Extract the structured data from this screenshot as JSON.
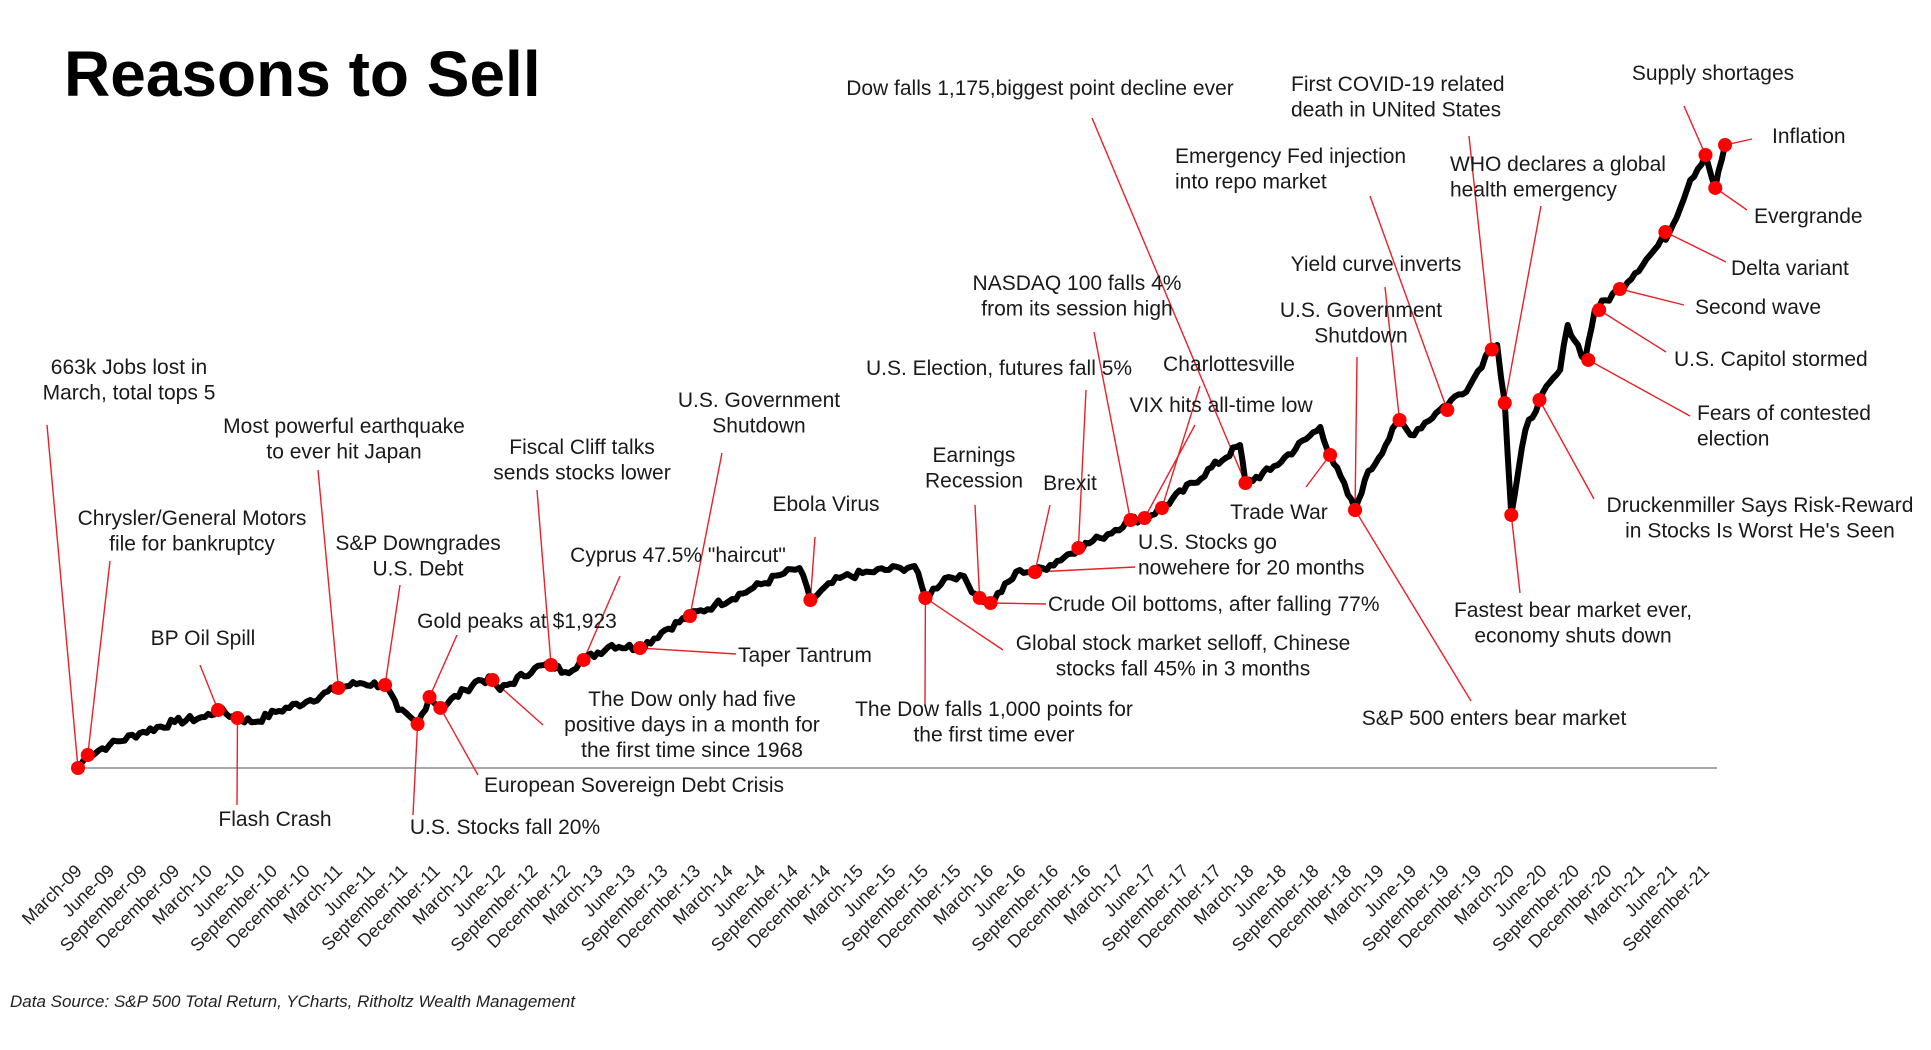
{
  "chart_data": {
    "type": "line",
    "title": "Reasons to Sell",
    "xlabel": "",
    "ylabel": "",
    "source_note": "Data Source: S&P 500 Total Return, YCharts, Ritholtz Wealth Management",
    "grid": false,
    "legend": "none",
    "series_name": "S&P 500 Total Return (index, March-09 = 100, estimated)",
    "x_unit": "months since March-09",
    "xlim": [
      0,
      152
    ],
    "ylim": [
      100,
      830
    ],
    "series": [
      {
        "name": "S&P 500 Total Return",
        "x": [
          0,
          0.9,
          2.9,
          5.7,
          8.9,
          11.7,
          12.9,
          14.7,
          16.3,
          18.2,
          21.4,
          24,
          26,
          28.3,
          29.5,
          31.3,
          32.4,
          33.4,
          35.7,
          36.9,
          38.2,
          38.9,
          42.1,
          43.6,
          44.9,
          46.6,
          49.2,
          51.8,
          54.1,
          56.4,
          58.7,
          61.9,
          64.7,
          66.5,
          67.5,
          70.2,
          73,
          75.8,
          77.1,
          78.1,
          79.9,
          81.3,
          83.1,
          84.1,
          86.8,
          88.2,
          89.6,
          92.2,
          94.2,
          97,
          98.3,
          99.9,
          107.1,
          107.6,
          109.9,
          114.5,
          115.4,
          117.7,
          118.6,
          121.8,
          122.8,
          125.5,
          128.3,
          130.1,
          130.8,
          131.5,
          132.1,
          133.4,
          134.7,
          136.6,
          137.3,
          138.9,
          139.8,
          142.1,
          144.9,
          146.7,
          148.6,
          150,
          150.9,
          151.8
        ],
        "values": [
          100,
          115.2,
          126.9,
          141,
          153.9,
          159.7,
          167.9,
          158.5,
          153.9,
          165.6,
          179.6,
          193.7,
          199.5,
          197.2,
          167.9,
          151.5,
          183.1,
          170.3,
          191.3,
          203,
          203,
          191.3,
          217.1,
          220.6,
          212.4,
          226.5,
          244,
          240.5,
          261.6,
          278,
          290.9,
          308.4,
          326,
          334.2,
          296.7,
          322.5,
          329.5,
          334.2,
          336.5,
          299.1,
          322.5,
          326,
          299.1,
          293.2,
          331.9,
          329.5,
          337.7,
          357.6,
          369.3,
          390.4,
          392.7,
          404.4,
          478.2,
          433.7,
          448.9,
          499.3,
          466.5,
          402.1,
          437.2,
          507.5,
          489.9,
          519.2,
          548.5,
          590,
          595.3,
          527.4,
          396.3,
          495.8,
          530.9,
          566,
          618.7,
          577.8,
          636.3,
          660.9,
          700.7,
          727.6,
          788.5,
          817.8,
          779.2,
          829.5
        ]
      }
    ],
    "tick_labels": [
      "March-09",
      "June-09",
      "September-09",
      "December-09",
      "March-10",
      "June-10",
      "September-10",
      "December-10",
      "March-11",
      "June-11",
      "September-11",
      "December-11",
      "March-12",
      "June-12",
      "September-12",
      "December-12",
      "March-13",
      "June-13",
      "September-13",
      "December-13",
      "March-14",
      "June-14",
      "September-14",
      "December-14",
      "March-15",
      "June-15",
      "September-15",
      "December-15",
      "March-16",
      "June-16",
      "September-16",
      "December-16",
      "March-17",
      "June-17",
      "September-17",
      "December-17",
      "March-18",
      "June-18",
      "September-18",
      "December-18",
      "March-19",
      "June-19",
      "September-19",
      "December-19",
      "March-20",
      "June-20",
      "September-20",
      "December-20",
      "March-21",
      "June-21",
      "September-21"
    ],
    "tick_step_months": 3,
    "annotations": [
      {
        "lines": [
          "663k Jobs lost in",
          "March, total tops 5"
        ],
        "x": 0,
        "value": 100
      },
      {
        "lines": [
          "Chrysler/General Motors",
          "file for bankruptcy"
        ],
        "x": 0.9,
        "value": 115.2
      },
      {
        "lines": [
          "BP Oil Spill"
        ],
        "x": 12.9,
        "value": 167.9
      },
      {
        "lines": [
          "Flash Crash"
        ],
        "x": 14.7,
        "value": 158.5
      },
      {
        "lines": [
          "Most powerful earthquake",
          "to ever hit Japan"
        ],
        "x": 24,
        "value": 193.7
      },
      {
        "lines": [
          "S&P Downgrades",
          "U.S. Debt"
        ],
        "x": 28.3,
        "value": 197.2
      },
      {
        "lines": [
          "U.S. Stocks fall 20%"
        ],
        "x": 31.3,
        "value": 151.5
      },
      {
        "lines": [
          "Gold peaks at $1,923"
        ],
        "x": 32.4,
        "value": 183.1
      },
      {
        "lines": [
          "European Sovereign Debt Crisis"
        ],
        "x": 33.4,
        "value": 170.3
      },
      {
        "lines": [
          "Fiscal Cliff talks",
          "sends stocks lower"
        ],
        "x": 43.6,
        "value": 220.6
      },
      {
        "lines": [
          "The Dow only had five",
          "positive days in a month for",
          "the first time since 1968"
        ],
        "x": 38.2,
        "value": 203
      },
      {
        "lines": [
          "Cyprus 47.5% \"haircut\""
        ],
        "x": 46.6,
        "value": 226.5
      },
      {
        "lines": [
          "Taper Tantrum"
        ],
        "x": 51.8,
        "value": 240.5
      },
      {
        "lines": [
          "U.S. Government",
          "Shutdown"
        ],
        "x": 56.4,
        "value": 278
      },
      {
        "lines": [
          "Ebola Virus"
        ],
        "x": 67.5,
        "value": 296.7
      },
      {
        "lines": [
          "The Dow falls 1,000 points for",
          "the first time ever"
        ],
        "x": 78.1,
        "value": 299.1
      },
      {
        "lines": [
          "Global stock market selloff, Chinese",
          "stocks fall 45% in 3 months"
        ],
        "x": 78.1,
        "value": 299.1
      },
      {
        "lines": [
          "Earnings",
          "Recession"
        ],
        "x": 83.1,
        "value": 299.1
      },
      {
        "lines": [
          "Crude Oil bottoms, after falling 77%"
        ],
        "x": 84.1,
        "value": 293.2
      },
      {
        "lines": [
          "Brexit"
        ],
        "x": 88.2,
        "value": 329.5
      },
      {
        "lines": [
          "U.S. Stocks go",
          "nowehere for 20 months"
        ],
        "x": 88.2,
        "value": 329.5
      },
      {
        "lines": [
          "U.S. Election, futures fall 5%"
        ],
        "x": 92.2,
        "value": 357.6
      },
      {
        "lines": [
          "NASDAQ 100 falls 4%",
          "from its  session high"
        ],
        "x": 97,
        "value": 390.4
      },
      {
        "lines": [
          "VIX hits all-time low"
        ],
        "x": 98.3,
        "value": 392.7
      },
      {
        "lines": [
          "Charlottesville"
        ],
        "x": 99.9,
        "value": 404.4
      },
      {
        "lines": [
          "Dow falls 1,175,biggest point decline ever"
        ],
        "x": 107.6,
        "value": 433.7
      },
      {
        "lines": [
          "Trade War"
        ],
        "x": 115.4,
        "value": 466.5
      },
      {
        "lines": [
          "U.S. Government",
          "Shutdown"
        ],
        "x": 117.7,
        "value": 402.1
      },
      {
        "lines": [
          "S&P 500 enters bear market"
        ],
        "x": 117.7,
        "value": 402.1
      },
      {
        "lines": [
          "Yield curve inverts"
        ],
        "x": 121.8,
        "value": 507.5
      },
      {
        "lines": [
          "Emergency Fed injection",
          "into repo market"
        ],
        "x": 126.2,
        "value": 519.2
      },
      {
        "lines": [
          "First COVID-19 related",
          "death in UNited States"
        ],
        "x": 130.3,
        "value": 590
      },
      {
        "lines": [
          "WHO declares a global",
          "health emergency"
        ],
        "x": 131.5,
        "value": 527.4
      },
      {
        "lines": [
          "Fastest bear market ever,",
          "economy shuts down"
        ],
        "x": 132.1,
        "value": 396.3
      },
      {
        "lines": [
          "Druckenmiller Says Risk-Reward",
          "in Stocks Is Worst He's Seen"
        ],
        "x": 134.7,
        "value": 530.9
      },
      {
        "lines": [
          "Fears of contested",
          "election"
        ],
        "x": 139.2,
        "value": 577.8
      },
      {
        "lines": [
          "U.S. Capitol stormed"
        ],
        "x": 140.2,
        "value": 636.3
      },
      {
        "lines": [
          "Second wave"
        ],
        "x": 142.1,
        "value": 660.9
      },
      {
        "lines": [
          "Delta variant"
        ],
        "x": 146.3,
        "value": 727.6
      },
      {
        "lines": [
          "Evergrande"
        ],
        "x": 150.9,
        "value": 779.2
      },
      {
        "lines": [
          "Inflation"
        ],
        "x": 151.8,
        "value": 829.5
      },
      {
        "lines": [
          "Supply shortages"
        ],
        "x": 150,
        "value": 817.8
      }
    ],
    "colors": {
      "series": "#000000",
      "markers": "#ff0000",
      "leaders": "#e8202a",
      "baseline": "#8c8c8c"
    }
  }
}
